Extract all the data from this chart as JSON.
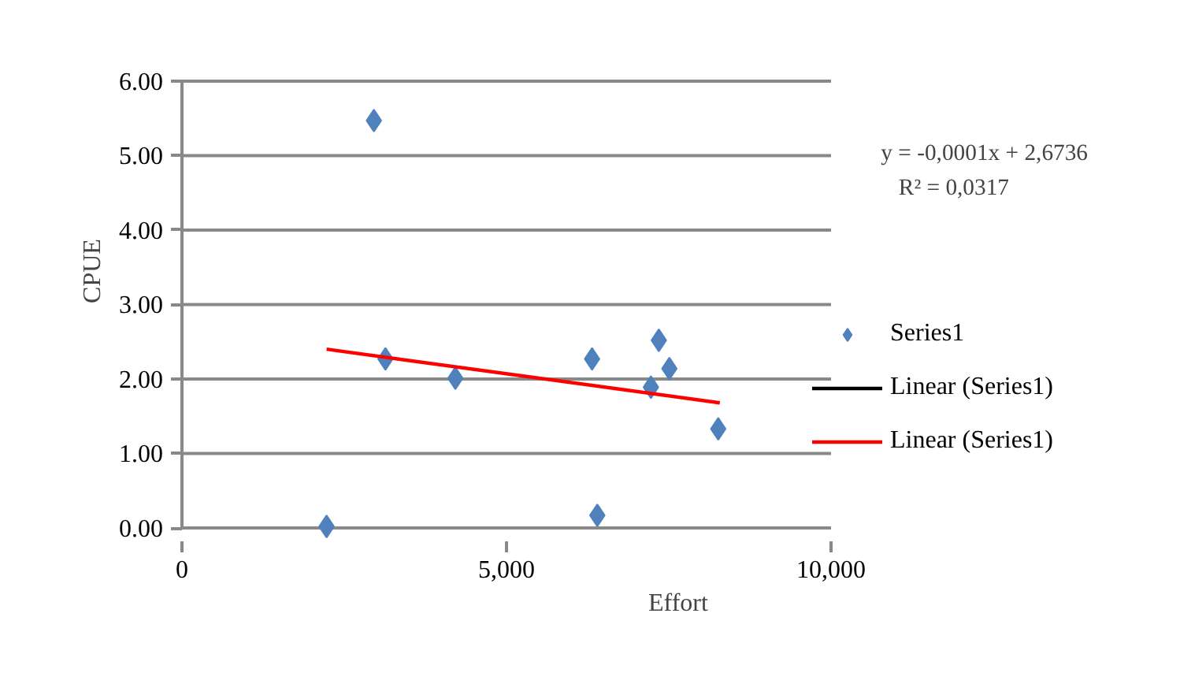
{
  "chart_data": {
    "type": "scatter",
    "xlabel": "Effort",
    "ylabel": "CPUE",
    "xlim": [
      0,
      10000
    ],
    "xticks": [
      0,
      {
        "value": 5000,
        "label": "5,000"
      },
      {
        "value": 10000,
        "label": "10,000"
      }
    ],
    "ylim": [
      0,
      6
    ],
    "yticks": [
      {
        "value": 0,
        "label": "0.00"
      },
      {
        "value": 1,
        "label": "1.00"
      },
      {
        "value": 2,
        "label": "2.00"
      },
      {
        "value": 3,
        "label": "3.00"
      },
      {
        "value": 4,
        "label": "4.00"
      },
      {
        "value": 5,
        "label": "5.00"
      },
      {
        "value": 6,
        "label": "6.00"
      }
    ],
    "grid": "y",
    "legend": "right",
    "series": [
      {
        "name": "Series1",
        "color": "#4f81bd",
        "marker": "diamond",
        "x": [
          2228,
          2957,
          3135,
          4212,
          6318,
          6399,
          7225,
          7347,
          7509,
          8262
        ],
        "values": [
          0.02,
          5.47,
          2.27,
          2.01,
          2.27,
          0.17,
          1.89,
          2.52,
          2.14,
          1.33
        ]
      },
      {
        "type": "line",
        "name": "Linear (Series1)",
        "color": "#000000",
        "values": [
          null,
          null
        ]
      },
      {
        "type": "line",
        "name": "Linear (Series1)",
        "color": "#ff0000",
        "x": [
          2228,
          8286
        ],
        "values": [
          2.4,
          1.68
        ]
      }
    ],
    "annotations": [
      "y = -0,0001x + 2,6736",
      "R² = 0,0317"
    ]
  }
}
